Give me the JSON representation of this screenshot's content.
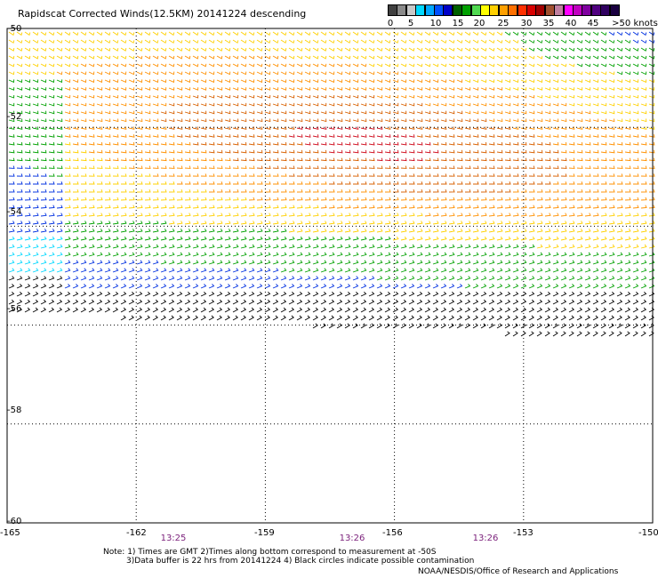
{
  "title": "Rapidscat Corrected Winds(12.5KM) 20141224 descending",
  "legend": {
    "labels": [
      "0",
      "5",
      "10",
      "15",
      "20",
      "25",
      "30",
      "35",
      "40",
      "45",
      ">50 knots"
    ],
    "colors": [
      "#404040",
      "#8a8a8a",
      "#c8c8c8",
      "#00d8ff",
      "#00a8ff",
      "#0050ff",
      "#0000c8",
      "#006000",
      "#00a000",
      "#50d850",
      "#ffff00",
      "#ffd000",
      "#ffa000",
      "#ff7000",
      "#ff3000",
      "#d80000",
      "#a00000",
      "#a05030",
      "#c080a0",
      "#ff00ff",
      "#c000c0",
      "#8000a0",
      "#500080",
      "#300060",
      "#1a0040"
    ]
  },
  "map": {
    "lon_range": [
      -165,
      -150
    ],
    "lat_range": [
      -60,
      -50
    ],
    "lon_labels": [
      "-165",
      "-162",
      "-159",
      "-156",
      "-153",
      "-150"
    ],
    "lat_labels": [
      "-50",
      "-52",
      "-54",
      "-56",
      "-58",
      "-60"
    ]
  },
  "times": [
    "13:25",
    "13:26",
    "13:26"
  ],
  "notes": {
    "line1": "Note: 1) Times are GMT 2)Times along bottom correspond to measurement at -50S",
    "line2": "3)Data buffer is 22 hrs from 20141224 4) Black circles indicate possible contamination"
  },
  "credit": "NOAA/NESDIS/Office of Research and Applications"
}
